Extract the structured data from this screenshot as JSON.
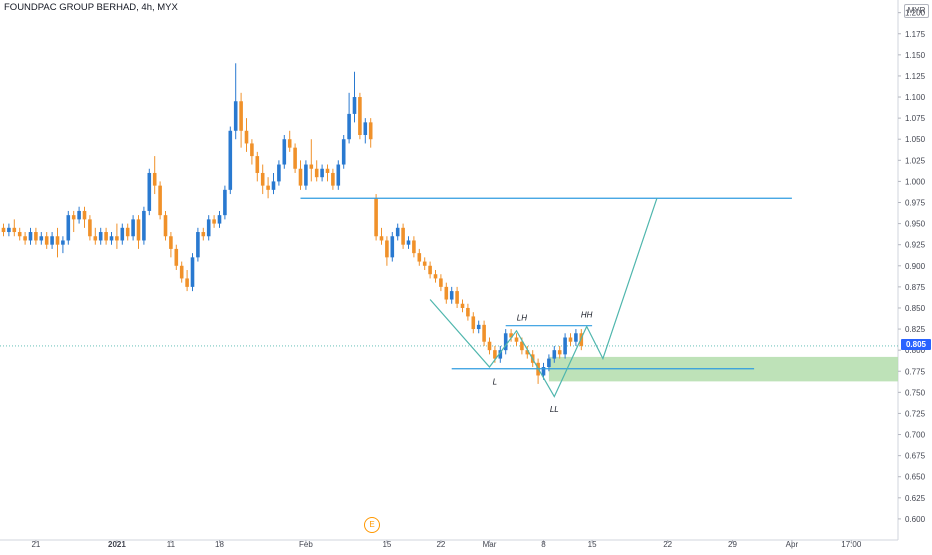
{
  "header": {
    "title": "FOUNDPAC GROUP BERHAD, 4h, MYX",
    "currency": "MYR"
  },
  "price_badge": "0.805",
  "event_badge": "E",
  "colors": {
    "up": "#2979d0",
    "down": "#f0912a",
    "drawing_line": "#2f9be0",
    "pattern_line": "#4fb6ad",
    "zone_fill": "#b7dfb0",
    "price_badge": "#2962ff",
    "event_badge": "#ff9800"
  },
  "chart_data": {
    "type": "candlestick",
    "symbol": "FOUNDPAC GROUP BERHAD",
    "interval": "4h",
    "exchange": "MYX",
    "ylim": [
      0.575,
      1.215
    ],
    "y_ticks": [
      "1.200",
      "1.175",
      "1.150",
      "1.125",
      "1.100",
      "1.075",
      "1.050",
      "1.025",
      "1.000",
      "0.975",
      "0.950",
      "0.925",
      "0.900",
      "0.875",
      "0.850",
      "0.825",
      "0.800",
      "0.775",
      "0.750",
      "0.725",
      "0.700",
      "0.675",
      "0.650",
      "0.625",
      "0.600"
    ],
    "x_ticks": [
      {
        "label": "21",
        "bar": 6
      },
      {
        "label": "2021",
        "bar": 21
      },
      {
        "label": "11",
        "bar": 31
      },
      {
        "label": "18",
        "bar": 40
      },
      {
        "label": "Feb",
        "bar": 56
      },
      {
        "label": "15",
        "bar": 71
      },
      {
        "label": "22",
        "bar": 81
      },
      {
        "label": "Mar",
        "bar": 90
      },
      {
        "label": "8",
        "bar": 100
      },
      {
        "label": "15",
        "bar": 109
      },
      {
        "label": "22",
        "bar": 123
      },
      {
        "label": "29",
        "bar": 135
      },
      {
        "label": "Apr",
        "bar": 146
      },
      {
        "label": "17:00",
        "bar": 157
      }
    ],
    "candles": [
      [
        0.945,
        0.94,
        0.95,
        0.935
      ],
      [
        0.94,
        0.945,
        0.95,
        0.935
      ],
      [
        0.945,
        0.94,
        0.955,
        0.935
      ],
      [
        0.94,
        0.935,
        0.945,
        0.93
      ],
      [
        0.935,
        0.93,
        0.94,
        0.925
      ],
      [
        0.93,
        0.94,
        0.945,
        0.925
      ],
      [
        0.94,
        0.93,
        0.945,
        0.925
      ],
      [
        0.93,
        0.935,
        0.94,
        0.925
      ],
      [
        0.935,
        0.925,
        0.94,
        0.92
      ],
      [
        0.925,
        0.935,
        0.94,
        0.92
      ],
      [
        0.935,
        0.925,
        0.945,
        0.91
      ],
      [
        0.925,
        0.93,
        0.935,
        0.915
      ],
      [
        0.93,
        0.96,
        0.965,
        0.925
      ],
      [
        0.96,
        0.955,
        0.965,
        0.94
      ],
      [
        0.955,
        0.965,
        0.97,
        0.95
      ],
      [
        0.965,
        0.955,
        0.97,
        0.945
      ],
      [
        0.955,
        0.935,
        0.96,
        0.93
      ],
      [
        0.935,
        0.93,
        0.945,
        0.925
      ],
      [
        0.93,
        0.94,
        0.945,
        0.925
      ],
      [
        0.94,
        0.93,
        0.945,
        0.925
      ],
      [
        0.93,
        0.935,
        0.94,
        0.925
      ],
      [
        0.935,
        0.93,
        0.95,
        0.92
      ],
      [
        0.93,
        0.945,
        0.95,
        0.925
      ],
      [
        0.945,
        0.935,
        0.95,
        0.93
      ],
      [
        0.935,
        0.955,
        0.96,
        0.93
      ],
      [
        0.955,
        0.93,
        0.96,
        0.92
      ],
      [
        0.93,
        0.965,
        0.97,
        0.925
      ],
      [
        0.965,
        1.01,
        1.015,
        0.96
      ],
      [
        1.01,
        0.995,
        1.03,
        0.985
      ],
      [
        0.995,
        0.96,
        1.0,
        0.955
      ],
      [
        0.96,
        0.935,
        0.965,
        0.93
      ],
      [
        0.935,
        0.92,
        0.94,
        0.91
      ],
      [
        0.92,
        0.9,
        0.925,
        0.895
      ],
      [
        0.9,
        0.885,
        0.905,
        0.88
      ],
      [
        0.885,
        0.875,
        0.895,
        0.87
      ],
      [
        0.875,
        0.91,
        0.915,
        0.87
      ],
      [
        0.91,
        0.94,
        0.945,
        0.905
      ],
      [
        0.94,
        0.935,
        0.945,
        0.93
      ],
      [
        0.935,
        0.955,
        0.96,
        0.93
      ],
      [
        0.955,
        0.95,
        0.96,
        0.945
      ],
      [
        0.95,
        0.96,
        0.965,
        0.945
      ],
      [
        0.96,
        0.99,
        0.995,
        0.955
      ],
      [
        0.99,
        1.06,
        1.065,
        0.985
      ],
      [
        1.06,
        1.095,
        1.14,
        1.05
      ],
      [
        1.095,
        1.06,
        1.105,
        1.04
      ],
      [
        1.06,
        1.045,
        1.075,
        1.035
      ],
      [
        1.045,
        1.03,
        1.05,
        1.02
      ],
      [
        1.03,
        1.01,
        1.035,
        1.0
      ],
      [
        1.01,
        0.995,
        1.02,
        0.985
      ],
      [
        0.995,
        0.99,
        1.005,
        0.98
      ],
      [
        0.99,
        1.0,
        1.01,
        0.985
      ],
      [
        1.0,
        1.02,
        1.025,
        0.995
      ],
      [
        1.02,
        1.05,
        1.055,
        1.015
      ],
      [
        1.05,
        1.04,
        1.06,
        1.035
      ],
      [
        1.04,
        1.015,
        1.045,
        1.01
      ],
      [
        1.015,
        0.995,
        1.025,
        0.99
      ],
      [
        0.995,
        1.02,
        1.025,
        0.99
      ],
      [
        1.02,
        1.015,
        1.05,
        1.0
      ],
      [
        1.015,
        1.005,
        1.025,
        1.0
      ],
      [
        1.005,
        1.015,
        1.02,
        1.0
      ],
      [
        1.015,
        1.01,
        1.02,
        1.0
      ],
      [
        1.01,
        0.995,
        1.015,
        0.99
      ],
      [
        0.995,
        1.02,
        1.025,
        0.99
      ],
      [
        1.02,
        1.05,
        1.055,
        1.015
      ],
      [
        1.05,
        1.08,
        1.105,
        1.045
      ],
      [
        1.08,
        1.1,
        1.13,
        1.07
      ],
      [
        1.1,
        1.055,
        1.105,
        1.05
      ],
      [
        1.055,
        1.07,
        1.075,
        1.045
      ],
      [
        1.07,
        1.05,
        1.075,
        1.04
      ],
      [
        0.98,
        0.935,
        0.985,
        0.93
      ],
      [
        0.935,
        0.93,
        0.945,
        0.925
      ],
      [
        0.93,
        0.91,
        0.935,
        0.9
      ],
      [
        0.91,
        0.935,
        0.94,
        0.905
      ],
      [
        0.935,
        0.945,
        0.95,
        0.93
      ],
      [
        0.945,
        0.925,
        0.95,
        0.92
      ],
      [
        0.925,
        0.93,
        0.935,
        0.92
      ],
      [
        0.93,
        0.915,
        0.935,
        0.91
      ],
      [
        0.915,
        0.905,
        0.92,
        0.9
      ],
      [
        0.905,
        0.9,
        0.91,
        0.895
      ],
      [
        0.9,
        0.89,
        0.905,
        0.885
      ],
      [
        0.89,
        0.885,
        0.895,
        0.88
      ],
      [
        0.885,
        0.875,
        0.89,
        0.87
      ],
      [
        0.875,
        0.86,
        0.88,
        0.855
      ],
      [
        0.86,
        0.87,
        0.875,
        0.855
      ],
      [
        0.87,
        0.855,
        0.875,
        0.85
      ],
      [
        0.855,
        0.85,
        0.86,
        0.845
      ],
      [
        0.85,
        0.84,
        0.855,
        0.835
      ],
      [
        0.84,
        0.825,
        0.845,
        0.82
      ],
      [
        0.825,
        0.83,
        0.835,
        0.82
      ],
      [
        0.83,
        0.81,
        0.835,
        0.805
      ],
      [
        0.81,
        0.8,
        0.815,
        0.795
      ],
      [
        0.8,
        0.79,
        0.805,
        0.785
      ],
      [
        0.79,
        0.8,
        0.805,
        0.785
      ],
      [
        0.8,
        0.82,
        0.825,
        0.795
      ],
      [
        0.82,
        0.815,
        0.825,
        0.81
      ],
      [
        0.815,
        0.81,
        0.82,
        0.805
      ],
      [
        0.81,
        0.8,
        0.815,
        0.795
      ],
      [
        0.8,
        0.795,
        0.805,
        0.79
      ],
      [
        0.795,
        0.785,
        0.8,
        0.78
      ],
      [
        0.785,
        0.77,
        0.79,
        0.76
      ],
      [
        0.77,
        0.78,
        0.785,
        0.765
      ],
      [
        0.78,
        0.79,
        0.795,
        0.775
      ],
      [
        0.79,
        0.8,
        0.805,
        0.785
      ],
      [
        0.8,
        0.795,
        0.805,
        0.79
      ],
      [
        0.795,
        0.815,
        0.82,
        0.79
      ],
      [
        0.815,
        0.81,
        0.82,
        0.805
      ],
      [
        0.81,
        0.82,
        0.825,
        0.805
      ],
      [
        0.82,
        0.805,
        0.825,
        0.8
      ]
    ],
    "horizontal_lines": [
      {
        "price": 0.98,
        "from_bar": 55,
        "to_bar": 146
      },
      {
        "price": 0.778,
        "from_bar": 83,
        "to_bar": 139
      },
      {
        "price": 0.829,
        "from_bar": 93,
        "to_bar": 109
      }
    ],
    "zone": {
      "from_bar": 101,
      "price_top": 0.792,
      "price_bottom": 0.763
    },
    "pattern_path": [
      {
        "bar": 79,
        "price": 0.86
      },
      {
        "bar": 90,
        "price": 0.78
      },
      {
        "bar": 95,
        "price": 0.823
      },
      {
        "bar": 102,
        "price": 0.745
      },
      {
        "bar": 108,
        "price": 0.828
      },
      {
        "bar": 111,
        "price": 0.79
      },
      {
        "bar": 121,
        "price": 0.98
      }
    ],
    "pattern_labels": [
      {
        "text": "LH",
        "bar": 96,
        "price": 0.839
      },
      {
        "text": "L",
        "bar": 91,
        "price": 0.763
      },
      {
        "text": "LL",
        "bar": 102,
        "price": 0.73
      },
      {
        "text": "HH",
        "bar": 108,
        "price": 0.842
      }
    ],
    "current_price": 0.805
  }
}
